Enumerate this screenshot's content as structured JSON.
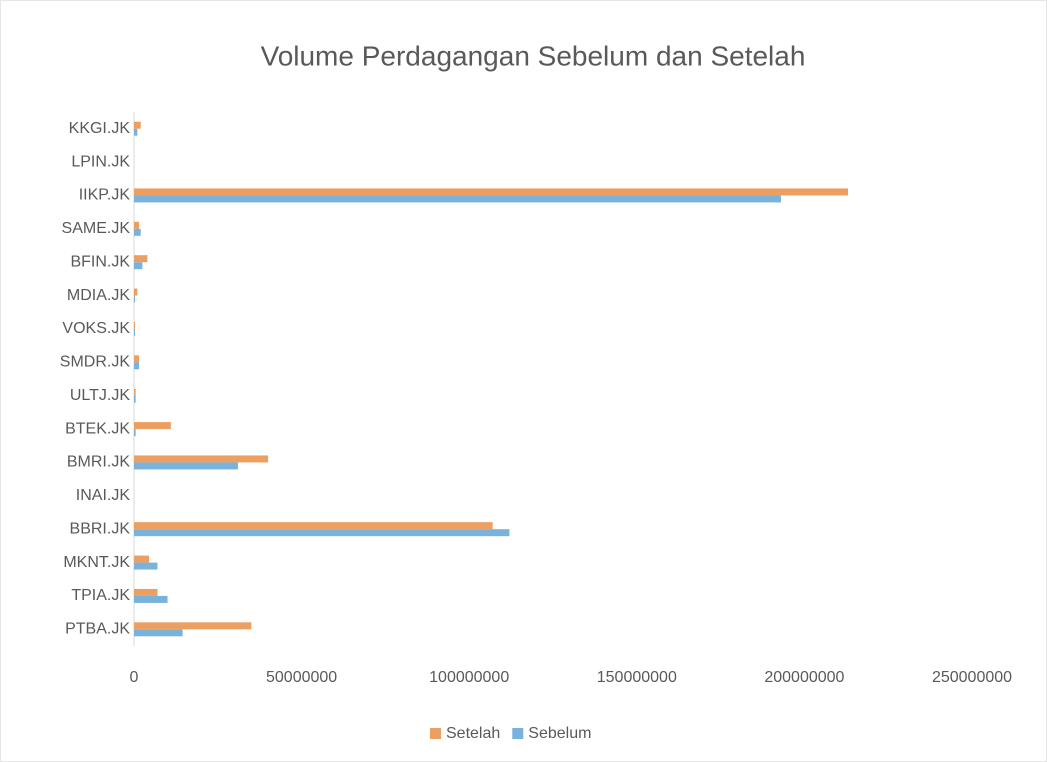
{
  "chart_data": {
    "type": "barh",
    "title": "Volume Perdagangan Sebelum dan Setelah",
    "categories": [
      "KKGI.JK",
      "LPIN.JK",
      "IIKP.JK",
      "SAME.JK",
      "BFIN.JK",
      "MDIA.JK",
      "VOKS.JK",
      "SMDR.JK",
      "ULTJ.JK",
      "BTEK.JK",
      "BMRI.JK",
      "INAI.JK",
      "BBRI.JK",
      "MKNT.JK",
      "TPIA.JK",
      "PTBA.JK"
    ],
    "series": [
      {
        "name": "Setelah",
        "color": "#ed9e61",
        "values": [
          2000000,
          0,
          213000000,
          1500000,
          4000000,
          1000000,
          300000,
          1500000,
          500000,
          11000000,
          40000000,
          0,
          107000000,
          4500000,
          7000000,
          35000000
        ]
      },
      {
        "name": "Sebelum",
        "color": "#79b3dc",
        "values": [
          1000000,
          0,
          193000000,
          2000000,
          2500000,
          300000,
          300000,
          1500000,
          500000,
          500000,
          31000000,
          0,
          112000000,
          7000000,
          10000000,
          14500000
        ]
      }
    ],
    "xlim": [
      0,
      250000000
    ],
    "xticks": [
      0,
      50000000,
      100000000,
      150000000,
      200000000,
      250000000
    ],
    "grid": false,
    "legend": "bottom"
  }
}
